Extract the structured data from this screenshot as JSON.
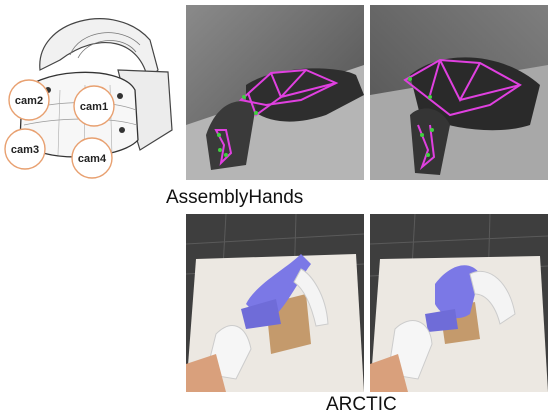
{
  "headset": {
    "cameras": [
      {
        "id": "cam2",
        "label": "cam2"
      },
      {
        "id": "cam1",
        "label": "cam1"
      },
      {
        "id": "cam3",
        "label": "cam3"
      },
      {
        "id": "cam4",
        "label": "cam4"
      }
    ],
    "circle_stroke": "#e8a070"
  },
  "assemblyhands": {
    "caption": "AssemblyHands",
    "keypoint_color": "#e040e0",
    "joint_color": "#40d040"
  },
  "arctic": {
    "caption": "ARCTIC",
    "object_color": "#7b78e6"
  }
}
